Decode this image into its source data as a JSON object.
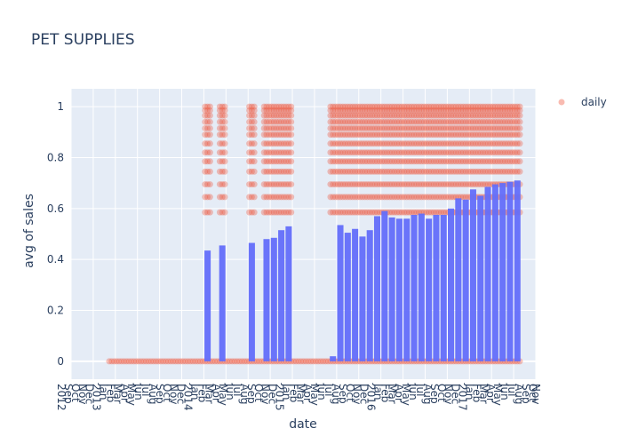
{
  "chart_data": {
    "type": "bar",
    "title": "PET SUPPLIES",
    "xlabel": "date",
    "ylabel": "avg of sales",
    "ylim": [
      -0.07,
      1.07
    ],
    "y_ticks": [
      0,
      0.2,
      0.4,
      0.6,
      0.8,
      1
    ],
    "grid": true,
    "legend": {
      "placement": "top-right",
      "entries": [
        "daily"
      ]
    },
    "x_tick_labels": [
      "2012",
      "Sep",
      "Oct",
      "Nov",
      "Dec",
      "2013",
      "Jan",
      "Feb",
      "Mar",
      "Apr",
      "May",
      "Jun",
      "Jul",
      "Aug",
      "Sep",
      "Oct",
      "Nov",
      "Dec",
      "2014",
      "Jan",
      "Feb",
      "Mar",
      "Apr",
      "May",
      "Jun",
      "Jul",
      "Aug",
      "Sep",
      "Oct",
      "Nov",
      "Dec",
      "2015",
      "Jan",
      "Feb",
      "Mar",
      "Apr",
      "May",
      "Jun",
      "Jul",
      "Aug",
      "Sep",
      "Oct",
      "Nov",
      "Dec",
      "2016",
      "Jan",
      "Feb",
      "Mar",
      "Apr",
      "May",
      "Jun",
      "Jul",
      "Aug",
      "Sep",
      "Oct",
      "Nov",
      "Dec",
      "2017",
      "Jan",
      "Feb",
      "Mar",
      "Apr",
      "May",
      "Jun",
      "Jul",
      "Aug",
      "Sep",
      "Oct",
      "Nov"
    ],
    "categories": [
      "2013-01",
      "2013-02",
      "2013-03",
      "2013-04",
      "2013-05",
      "2013-06",
      "2013-07",
      "2013-08",
      "2013-09",
      "2013-10",
      "2013-11",
      "2013-12",
      "2014-01",
      "2014-02",
      "2014-03",
      "2014-04",
      "2014-05",
      "2014-06",
      "2014-07",
      "2014-08",
      "2014-09",
      "2014-10",
      "2014-11",
      "2014-12",
      "2015-01",
      "2015-02",
      "2015-03",
      "2015-04",
      "2015-05",
      "2015-06",
      "2015-07",
      "2015-08",
      "2015-09",
      "2015-10",
      "2015-11",
      "2015-12",
      "2016-01",
      "2016-02",
      "2016-03",
      "2016-04",
      "2016-05",
      "2016-06",
      "2016-07",
      "2016-08",
      "2016-09",
      "2016-10",
      "2016-11",
      "2016-12",
      "2017-01",
      "2017-02",
      "2017-03",
      "2017-04",
      "2017-05",
      "2017-06",
      "2017-07",
      "2017-08"
    ],
    "series": [
      {
        "name": "",
        "type": "bar",
        "color": "#636efa",
        "values": [
          0,
          0,
          0,
          0,
          0,
          0,
          0,
          0,
          0,
          0,
          0,
          0,
          0,
          0.435,
          0,
          0.455,
          0,
          0,
          0,
          0.465,
          0,
          0.48,
          0.485,
          0.515,
          0.53,
          0,
          0,
          0,
          0,
          0,
          0.02,
          0.535,
          0.505,
          0.52,
          0.49,
          0.515,
          0.57,
          0.59,
          0.565,
          0.56,
          0.56,
          0.575,
          0.58,
          0.56,
          0.575,
          0.575,
          0.6,
          0.64,
          0.635,
          0.675,
          0.65,
          0.685,
          0.695,
          0.7,
          0.705,
          0.71
        ]
      },
      {
        "name": "daily",
        "type": "scatter",
        "color": "#ef553b",
        "levels": [
          0,
          0.585,
          0.645,
          0.695,
          0.745,
          0.785,
          0.82,
          0.855,
          0.89,
          0.915,
          0.94,
          0.965,
          0.985,
          1.0
        ],
        "active_months": [
          "2014-02",
          "2014-04",
          "2014-08",
          "2014-10",
          "2014-11",
          "2014-12",
          "2015-01",
          "2015-07",
          "2015-08",
          "2015-09",
          "2015-10",
          "2015-11",
          "2015-12",
          "2016-01",
          "2016-02",
          "2016-03",
          "2016-04",
          "2016-05",
          "2016-06",
          "2016-07",
          "2016-08",
          "2016-09",
          "2016-10",
          "2016-11",
          "2016-12",
          "2017-01",
          "2017-02",
          "2017-03",
          "2017-04",
          "2017-05",
          "2017-06",
          "2017-07",
          "2017-08"
        ],
        "zero_range": [
          "2013-01",
          "2017-08"
        ]
      }
    ]
  }
}
